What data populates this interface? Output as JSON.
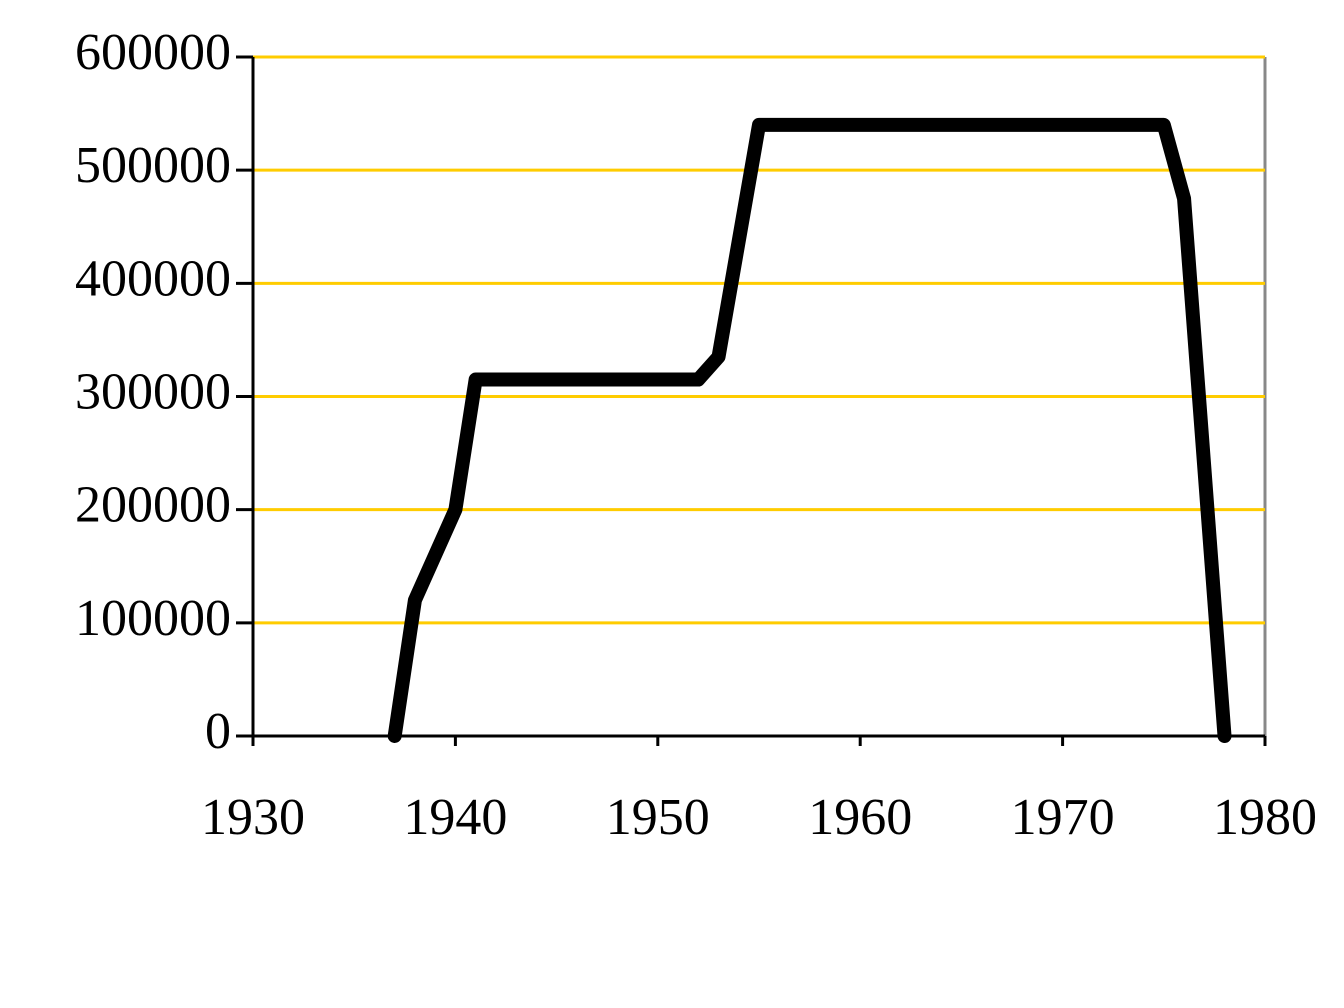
{
  "chart_data": {
    "type": "line",
    "x": [
      1937,
      1938,
      1939,
      1940,
      1941,
      1952,
      1953,
      1955,
      1975,
      1976,
      1978
    ],
    "series": [
      {
        "color": "#000000",
        "values": [
          0,
          120000,
          160000,
          200000,
          315000,
          315000,
          335000,
          540000,
          540000,
          475000,
          0
        ]
      }
    ],
    "xlim": [
      1930,
      1980
    ],
    "xticks": [
      1930,
      1940,
      1950,
      1960,
      1970,
      1980
    ],
    "ylim": [
      0,
      600000
    ],
    "yticks": [
      0,
      100000,
      200000,
      300000,
      400000,
      500000,
      600000
    ],
    "grid": true,
    "grid_color": "#ffcc00"
  }
}
